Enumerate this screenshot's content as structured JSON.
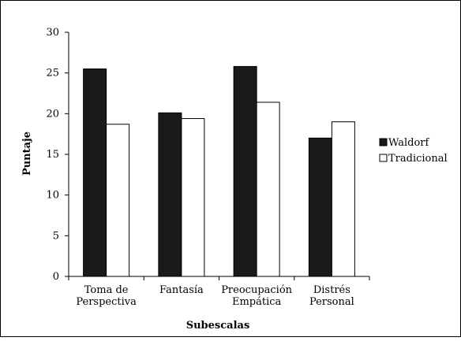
{
  "chart_data": {
    "type": "bar",
    "xlabel": "Subescalas",
    "ylabel": "Puntaje",
    "ylim": [
      0,
      30
    ],
    "yticks": [
      0,
      5,
      10,
      15,
      20,
      25,
      30
    ],
    "categories": [
      [
        "Toma de",
        "Perspectiva"
      ],
      [
        "Fantasía"
      ],
      [
        "Preocupación",
        "Empática"
      ],
      [
        "Distrés",
        "Personal"
      ]
    ],
    "series": [
      {
        "name": "Waldorf",
        "color": "#1a1a1a",
        "values": [
          25.5,
          20.1,
          25.8,
          17.0
        ]
      },
      {
        "name": "Tradicional",
        "color": "#ffffff",
        "values": [
          18.7,
          19.4,
          21.4,
          19.0
        ]
      }
    ],
    "legend": "right",
    "grid": false
  }
}
